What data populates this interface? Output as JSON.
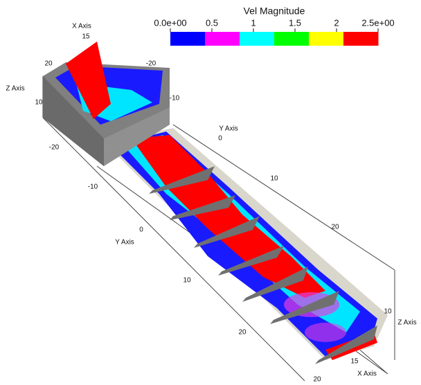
{
  "colorbar": {
    "title": "Vel Magnitude",
    "range": [
      0,
      2.5
    ],
    "ticks": [
      {
        "value": 0,
        "label": "0.0e+00"
      },
      0.5,
      1,
      1.5,
      2,
      {
        "value": 2.5,
        "label": "2.5e+00"
      }
    ],
    "colors": [
      "#0000ff",
      "#ff00ff",
      "#00ffff",
      "#00ff00",
      "#ffff00",
      "#ff0000"
    ]
  },
  "axis_labels": [
    "X Axis",
    "15",
    "20",
    "-20",
    "-10",
    "Z Axis",
    "10",
    "-20",
    "-10",
    "0",
    "Y Axis",
    "10",
    "20",
    "Y Axis",
    "0",
    "10",
    "20",
    "10",
    "Z Axis",
    "15",
    "X Axis",
    "20"
  ]
}
